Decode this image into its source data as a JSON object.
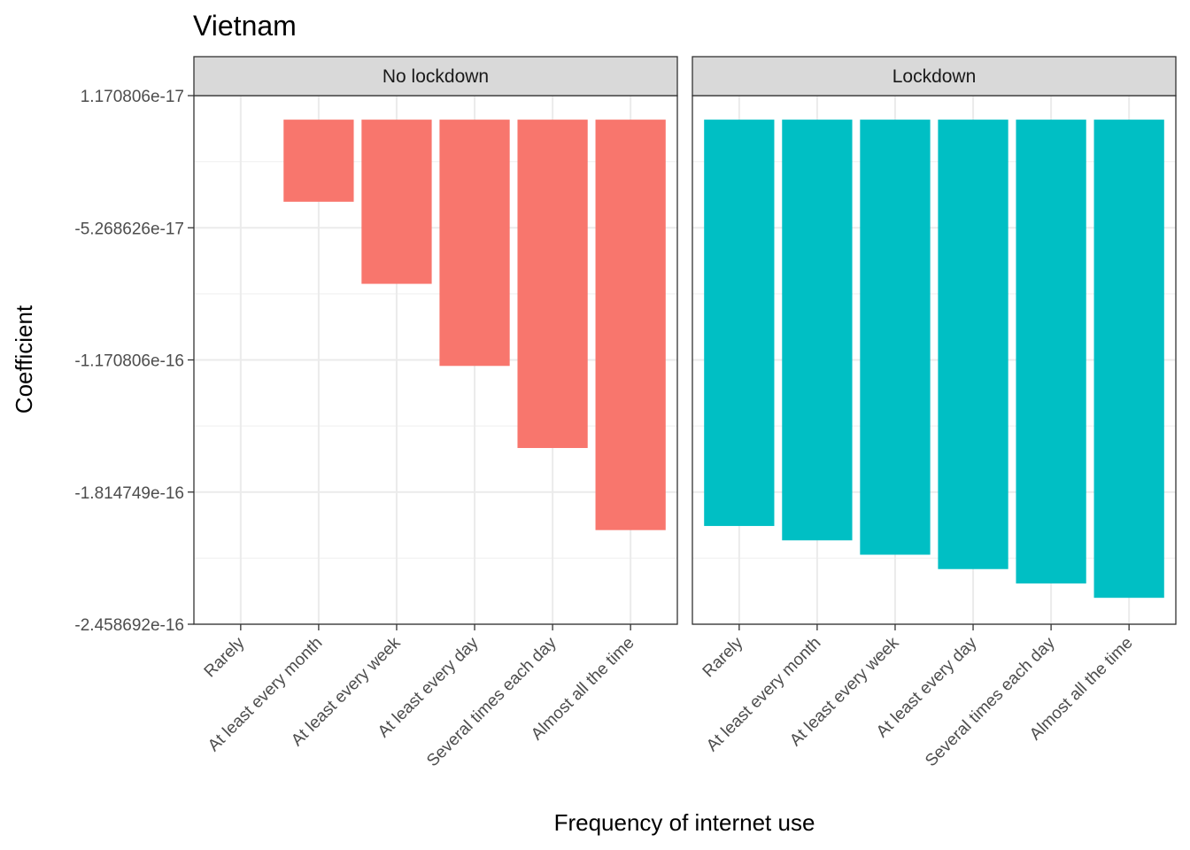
{
  "chart_data": {
    "type": "bar",
    "title": "Vietnam",
    "xlabel": "Frequency of internet use",
    "ylabel": "Coefficient",
    "categories": [
      "Rarely",
      "At least every month",
      "At least every week",
      "At least every day",
      "Several times each day",
      "Almost all the time"
    ],
    "y_ticks": [
      {
        "value": 1.170806e-17,
        "label": "1.170806e-17"
      },
      {
        "value": -5.268626e-17,
        "label": "-5.268626e-17"
      },
      {
        "value": -1.170806e-16,
        "label": "-1.170806e-16"
      },
      {
        "value": -1.814749e-16,
        "label": "-1.814749e-16"
      },
      {
        "value": -2.458692e-16,
        "label": "-2.458692e-16"
      }
    ],
    "ylim": [
      -2.458692e-16,
      1.170806e-17
    ],
    "grid": true,
    "panels": [
      {
        "label": "No lockdown",
        "color": "#F8766D",
        "values": [
          0,
          -4e-17,
          -8e-17,
          -1.2e-16,
          -1.6e-16,
          -2e-16
        ]
      },
      {
        "label": "Lockdown",
        "color": "#00BFC4",
        "values": [
          -1.98e-16,
          -2.05e-16,
          -2.12e-16,
          -2.19e-16,
          -2.26e-16,
          -2.33e-16
        ]
      }
    ]
  }
}
